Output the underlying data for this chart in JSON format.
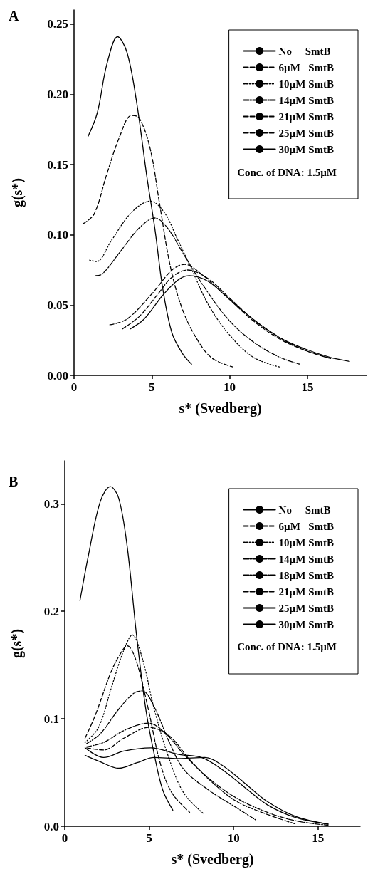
{
  "chart_data": [
    {
      "type": "line",
      "xlabel": "s* (Svedberg)",
      "ylabel": "g(s*)",
      "annotations": [
        "A",
        "Conc. of DNA: 1.5µM"
      ],
      "xlim": [
        0,
        18.8
      ],
      "ylim": [
        0,
        0.26
      ],
      "xticks": [
        0,
        5,
        10,
        15
      ],
      "yticks": [
        {
          "value": 0,
          "label": "0.00"
        },
        {
          "value": 0.05,
          "label": "0.05"
        },
        {
          "value": 0.1,
          "label": "0.10"
        },
        {
          "value": 0.15,
          "label": "0.15"
        },
        {
          "value": 0.2,
          "label": "0.20"
        },
        {
          "value": 0.25,
          "label": "0.25"
        }
      ],
      "grid": false,
      "legend": "top right",
      "marker": "none",
      "series": [
        {
          "name": "No     SmtB",
          "color": "#000000",
          "line_style": "solid",
          "x": [
            0.9,
            1.5,
            2.1,
            2.8,
            3.4,
            4.0,
            4.7,
            5.2,
            5.7,
            6.3,
            7.0,
            7.55
          ],
          "values": [
            0.17,
            0.187,
            0.221,
            0.241,
            0.23,
            0.196,
            0.14,
            0.104,
            0.062,
            0.03,
            0.015,
            0.008
          ]
        },
        {
          "name": "6µM   SmtB",
          "color": "#000000",
          "line_style": "dashed",
          "x": [
            0.6,
            1.3,
            2.1,
            2.9,
            3.7,
            4.2,
            4.9,
            5.5,
            6.2,
            7.0,
            8.0,
            8.9,
            10.2
          ],
          "values": [
            0.108,
            0.115,
            0.143,
            0.169,
            0.185,
            0.183,
            0.161,
            0.122,
            0.077,
            0.046,
            0.024,
            0.012,
            0.006
          ]
        },
        {
          "name": "10µM SmtB",
          "color": "#000000",
          "line_style": "dotted",
          "x": [
            1.0,
            1.45,
            2.4,
            3.7,
            4.9,
            5.8,
            6.6,
            7.5,
            8.6,
            9.9,
            11.5,
            13.2
          ],
          "values": [
            0.082,
            0.081,
            0.096,
            0.116,
            0.124,
            0.116,
            0.098,
            0.077,
            0.051,
            0.03,
            0.013,
            0.006
          ]
        },
        {
          "name": "14µM SmtB",
          "color": "#000000",
          "line_style": "dashdot",
          "x": [
            1.4,
            1.8,
            2.9,
            4.2,
            5.2,
            6.0,
            7.0,
            8.3,
            9.9,
            11.5,
            13.2,
            14.5
          ],
          "values": [
            0.071,
            0.072,
            0.087,
            0.105,
            0.112,
            0.105,
            0.087,
            0.064,
            0.04,
            0.024,
            0.013,
            0.008
          ]
        },
        {
          "name": "21µM SmtB",
          "color": "#000000",
          "line_style": "dashed",
          "x": [
            2.3,
            3.4,
            5.0,
            6.3,
            7.1,
            8.3,
            9.9,
            11.5,
            13.2,
            14.8,
            16.5
          ],
          "values": [
            0.036,
            0.04,
            0.058,
            0.075,
            0.079,
            0.071,
            0.055,
            0.039,
            0.026,
            0.018,
            0.012
          ]
        },
        {
          "name": "25µM SmtB",
          "color": "#000000",
          "line_style": "dashed",
          "x": [
            3.1,
            4.2,
            5.4,
            6.3,
            7.3,
            8.6,
            9.9,
            11.5,
            13.2,
            14.8,
            16.5
          ],
          "values": [
            0.033,
            0.042,
            0.058,
            0.07,
            0.075,
            0.069,
            0.056,
            0.04,
            0.027,
            0.018,
            0.012
          ]
        },
        {
          "name": "30µM SmtB",
          "color": "#000000",
          "line_style": "solid",
          "x": [
            3.6,
            4.5,
            5.7,
            6.7,
            7.4,
            8.6,
            9.9,
            11.5,
            13.2,
            14.8,
            16.4,
            17.7
          ],
          "values": [
            0.033,
            0.04,
            0.057,
            0.068,
            0.071,
            0.067,
            0.055,
            0.04,
            0.027,
            0.019,
            0.013,
            0.01
          ]
        }
      ]
    },
    {
      "type": "line",
      "xlabel": "s* (Svedberg)",
      "ylabel": "g(s*)",
      "annotations": [
        "B",
        "Conc. of DNA: 1.5µM"
      ],
      "xlim": [
        0,
        17.5
      ],
      "ylim": [
        0,
        0.34
      ],
      "xticks": [
        0,
        5,
        10,
        15
      ],
      "yticks": [
        {
          "value": 0,
          "label": "0.0"
        },
        0.1,
        0.2,
        0.3
      ],
      "grid": false,
      "legend": "top right",
      "marker": "none",
      "series": [
        {
          "name": "No     SmtB",
          "color": "#000000",
          "line_style": "solid",
          "x": [
            0.9,
            1.4,
            2.1,
            2.7,
            3.2,
            3.7,
            4.25,
            4.8,
            5.3,
            5.8,
            6.4
          ],
          "values": [
            0.21,
            0.252,
            0.302,
            0.316,
            0.305,
            0.26,
            0.178,
            0.109,
            0.067,
            0.034,
            0.015
          ]
        },
        {
          "name": "6µM   SmtB",
          "color": "#000000",
          "line_style": "dashed",
          "x": [
            1.2,
            1.8,
            2.7,
            3.2,
            3.7,
            4.25,
            4.95,
            5.65,
            6.35,
            7.4
          ],
          "values": [
            0.082,
            0.103,
            0.142,
            0.158,
            0.168,
            0.153,
            0.109,
            0.059,
            0.031,
            0.013
          ]
        },
        {
          "name": "10µM SmtB",
          "color": "#000000",
          "line_style": "dotted",
          "x": [
            1.2,
            2.0,
            2.8,
            3.5,
            4.0,
            4.6,
            5.3,
            6.2,
            7.05,
            8.2
          ],
          "values": [
            0.078,
            0.092,
            0.131,
            0.164,
            0.178,
            0.156,
            0.109,
            0.062,
            0.031,
            0.012
          ]
        },
        {
          "name": "14µM SmtB",
          "color": "#000000",
          "line_style": "dashdot",
          "x": [
            1.3,
            2.1,
            3.2,
            4.1,
            4.6,
            5.3,
            6.2,
            7.05,
            8.5,
            10.2,
            11.3
          ],
          "values": [
            0.077,
            0.086,
            0.109,
            0.124,
            0.126,
            0.111,
            0.078,
            0.053,
            0.034,
            0.017,
            0.006
          ]
        },
        {
          "name": "18µM SmtB",
          "color": "#000000",
          "line_style": "dashdot",
          "x": [
            1.3,
            2.3,
            3.5,
            4.95,
            6.0,
            7.05,
            8.5,
            10.2,
            12.0,
            13.7,
            15.6
          ],
          "values": [
            0.074,
            0.078,
            0.089,
            0.096,
            0.086,
            0.067,
            0.045,
            0.026,
            0.013,
            0.005,
            0.001
          ]
        },
        {
          "name": "21µM SmtB",
          "color": "#000000",
          "line_style": "dashed",
          "x": [
            1.3,
            2.3,
            3.5,
            5.0,
            6.2,
            7.4,
            8.8,
            10.2,
            12.0,
            13.7
          ],
          "values": [
            0.073,
            0.071,
            0.082,
            0.092,
            0.084,
            0.062,
            0.04,
            0.023,
            0.011,
            0.002
          ]
        },
        {
          "name": "25µM SmtB",
          "color": "#000000",
          "line_style": "solid",
          "x": [
            1.2,
            2.3,
            3.5,
            5.1,
            6.7,
            8.1,
            9.3,
            10.6,
            12.0,
            13.7,
            15.6
          ],
          "values": [
            0.073,
            0.064,
            0.07,
            0.073,
            0.067,
            0.064,
            0.053,
            0.037,
            0.02,
            0.008,
            0.002
          ]
        },
        {
          "name": "30µM SmtB",
          "color": "#000000",
          "line_style": "solid",
          "x": [
            1.2,
            2.1,
            3.2,
            4.25,
            5.3,
            6.7,
            8.3,
            9.3,
            10.6,
            12.0,
            13.7,
            15.6
          ],
          "values": [
            0.066,
            0.06,
            0.054,
            0.059,
            0.064,
            0.063,
            0.064,
            0.057,
            0.041,
            0.023,
            0.009,
            0.002
          ]
        }
      ]
    }
  ]
}
